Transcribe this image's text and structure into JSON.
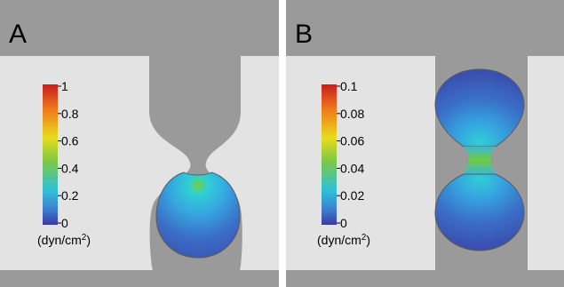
{
  "panels": [
    {
      "id": "A",
      "label": "A",
      "colorbar": {
        "ticks": [
          "1",
          "0.8",
          "0.6",
          "0.4",
          "0.2",
          "0"
        ],
        "unit_prefix": "(dyn/cm",
        "unit_sup": "2",
        "unit_suffix": ")"
      }
    },
    {
      "id": "B",
      "label": "B",
      "colorbar": {
        "ticks": [
          "0.1",
          "0.08",
          "0.06",
          "0.04",
          "0.02",
          "0"
        ],
        "unit_prefix": "(dyn/cm",
        "unit_sup": "2",
        "unit_suffix": ")"
      }
    }
  ],
  "colors": {
    "wall": "#9a9a9a",
    "channel": "#e3e3e3",
    "divider": "#ffffff",
    "colormap": [
      "#c81e1e",
      "#f07a1c",
      "#e9dc1c",
      "#7cc843",
      "#2fc2d8",
      "#3c7ad0",
      "#3a3aa3"
    ]
  }
}
